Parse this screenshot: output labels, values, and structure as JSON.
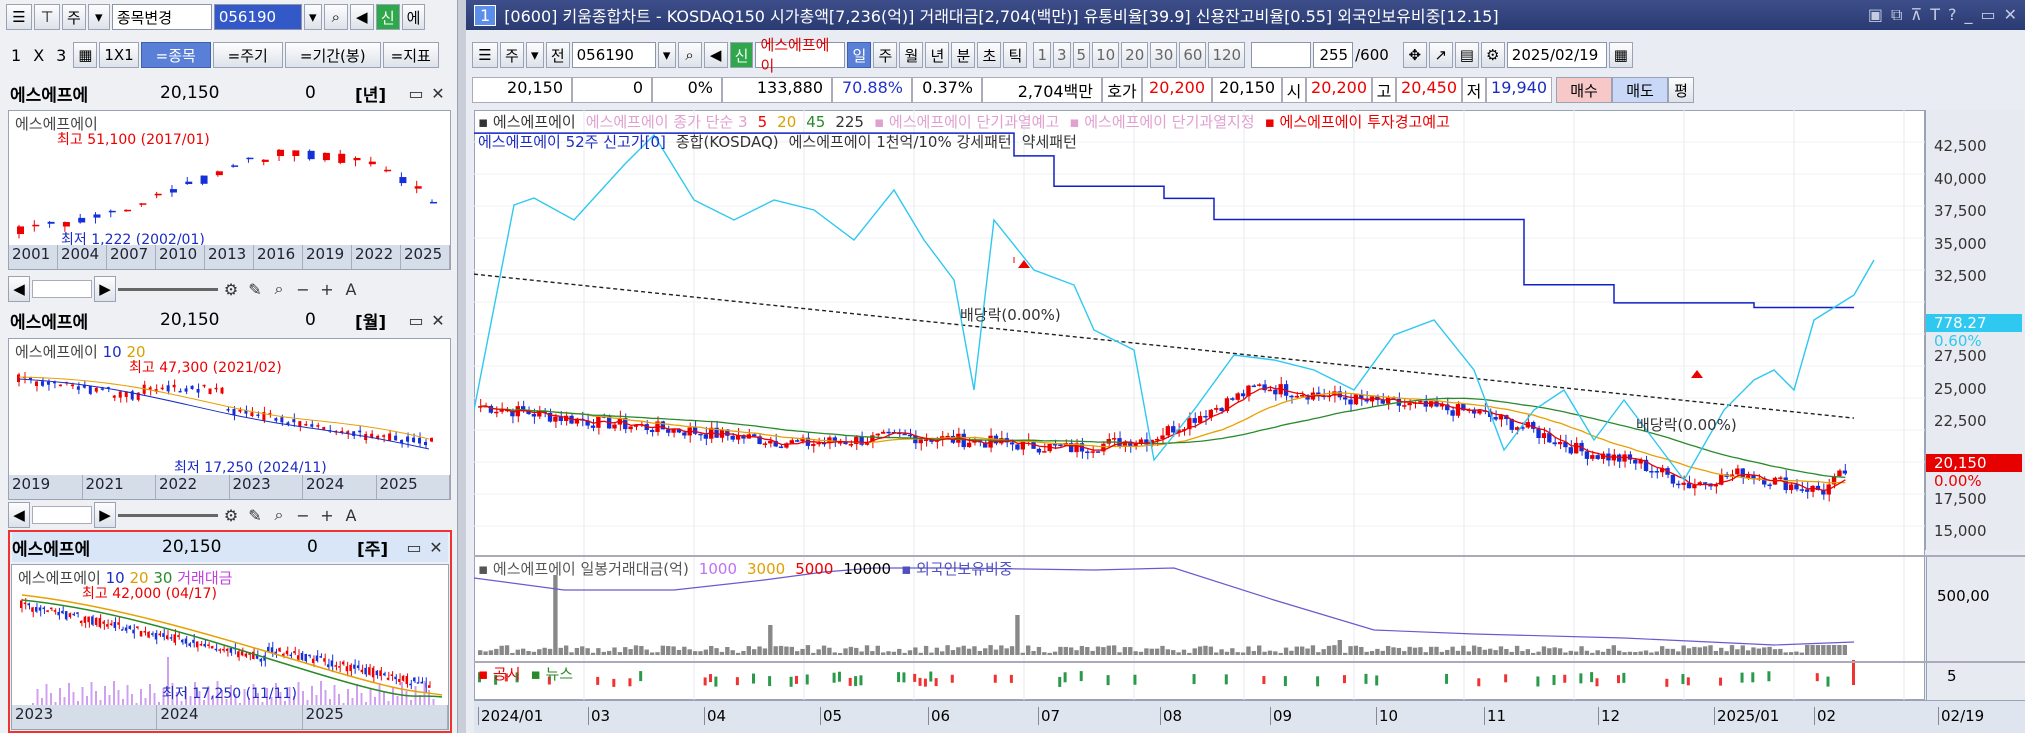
{
  "left": {
    "toolbar": {
      "mode": "주",
      "code_change": "종목변경",
      "code": "056190",
      "sin": "신",
      "more": "에"
    },
    "layout": {
      "one": "1",
      "x": "X",
      "three": "3",
      "grid": "1X1",
      "tab_stock": "=종목",
      "tab_period": "=주기",
      "tab_range": "=기간(봉)",
      "tab_ind": "=지표"
    },
    "p1": {
      "name": "에스에프에",
      "price": "20,150",
      "change": "0",
      "period": "[년]",
      "legend": "에스에프에이",
      "high": "최고 51,100 (2017/01)",
      "low": "최저 1,222 (2002/01)",
      "x": [
        "2001",
        "2004",
        "2007",
        "2010",
        "2013",
        "2016",
        "2019",
        "2022",
        "2025"
      ]
    },
    "p2": {
      "name": "에스에프에",
      "price": "20,150",
      "change": "0",
      "period": "[월]",
      "legend": "에스에프에이",
      "ma1": "10",
      "ma2": "20",
      "high": "최고 47,300 (2021/02)",
      "low": "최저 17,250 (2024/11)",
      "x": [
        "2019",
        "2021",
        "2022",
        "2023",
        "2024",
        "2025"
      ]
    },
    "p3": {
      "name": "에스에프에",
      "price": "20,150",
      "change": "0",
      "period": "[주]",
      "legend": "에스에프에이",
      "ma1": "10",
      "ma2": "20",
      "ma3": "30",
      "vol": "거래대금",
      "high": "최고 42,000 (04/17)",
      "low": "최저 17,250 (11/11)",
      "x": [
        "2023",
        "2024",
        "2025"
      ]
    }
  },
  "header": {
    "num": "1",
    "text": "[0600] 키움종합차트 - KOSDAQ150 시가총액[7,236(억)] 거래대금[2,704(백만)] 유통비율[39.9] 신용잔고비율[0.55] 외국인보유비중[12.15]"
  },
  "main": {
    "toolbar": {
      "mode": "주",
      "prev": "전",
      "code": "056190",
      "sin": "신",
      "name": "에스에프에이",
      "periods": [
        "일",
        "주",
        "월",
        "년",
        "분",
        "초",
        "틱"
      ],
      "nums": [
        "1",
        "3",
        "5",
        "10",
        "20",
        "30",
        "60",
        "120"
      ],
      "count": "255",
      "total": "/600",
      "date": "2025/02/19"
    },
    "quote": {
      "price": "20,150",
      "chg": "0",
      "pct": "0%",
      "vol": "133,880",
      "ratio": "70.88%",
      "r2": "0.37%",
      "amt": "2,704백만",
      "hoga": "호가",
      "ask": "20,200",
      "bid": "20,150",
      "o_l": "시",
      "o": "20,200",
      "h_l": "고",
      "h": "20,450",
      "l_l": "저",
      "l": "19,940",
      "buy": "매수",
      "sell": "매도",
      "even": "평"
    },
    "legend1": [
      "에스에프에이",
      "에스에프에이 종가 단순 3",
      "5",
      "20",
      "45",
      "225",
      "에스에프에이 단기과열예고",
      "에스에프에이 단기과열지정",
      "에스에프에이 투자경고예고"
    ],
    "legend2": [
      "에스에프에이 52주 신고가[0]",
      "종합(KOSDAQ)",
      "에스에프에이 1천억/10% 강세패턴",
      "약세패턴"
    ],
    "div1": "배당락(0.00%)",
    "div2": "배당락(0.00%)",
    "yticks": [
      "42,500",
      "40,000",
      "37,500",
      "35,000",
      "32,500",
      "27,500",
      "25,000",
      "22,500",
      "17,500",
      "15,000"
    ],
    "kosdaq": "778.27",
    "kpct": "0.60%",
    "last": "20,150",
    "lpct": "0.00%",
    "vol_legend": [
      "에스에프에이 일봉거래대금(억)",
      "1000",
      "3000",
      "5000",
      "10000",
      "외국인보유비중"
    ],
    "vol_tick": "500,00",
    "news_legend": [
      "공시",
      "뉴스"
    ],
    "news_tick": "5",
    "x": [
      "2024/01",
      "03",
      "04",
      "05",
      "06",
      "07",
      "08",
      "09",
      "10",
      "11",
      "12",
      "2025/01",
      "02",
      "02/19"
    ]
  },
  "colors": {
    "up": "#e60000",
    "down": "#1530d8",
    "kosdaq": "#2ec8f0",
    "high52": "#1020c8"
  }
}
